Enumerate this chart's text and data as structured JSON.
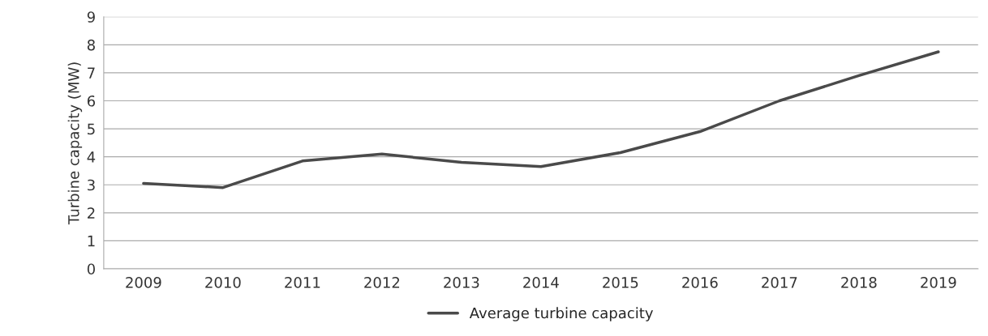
{
  "chart_data": {
    "type": "line",
    "ylabel": "Turbine capacity (MW)",
    "categories": [
      "2009",
      "2010",
      "2011",
      "2012",
      "2013",
      "2014",
      "2015",
      "2016",
      "2017",
      "2018",
      "2019"
    ],
    "series": [
      {
        "name": "Average turbine capacity",
        "color": "#4a4a4a",
        "values": [
          3.05,
          2.9,
          3.85,
          4.1,
          3.8,
          3.65,
          4.15,
          4.9,
          6.0,
          6.9,
          7.75
        ]
      }
    ],
    "ylim": [
      0,
      9
    ],
    "yticks": [
      0,
      1,
      2,
      3,
      4,
      5,
      6,
      7,
      8,
      9
    ],
    "grid": "y",
    "legend": "bottom",
    "marker": "none",
    "line_style": "solid"
  }
}
